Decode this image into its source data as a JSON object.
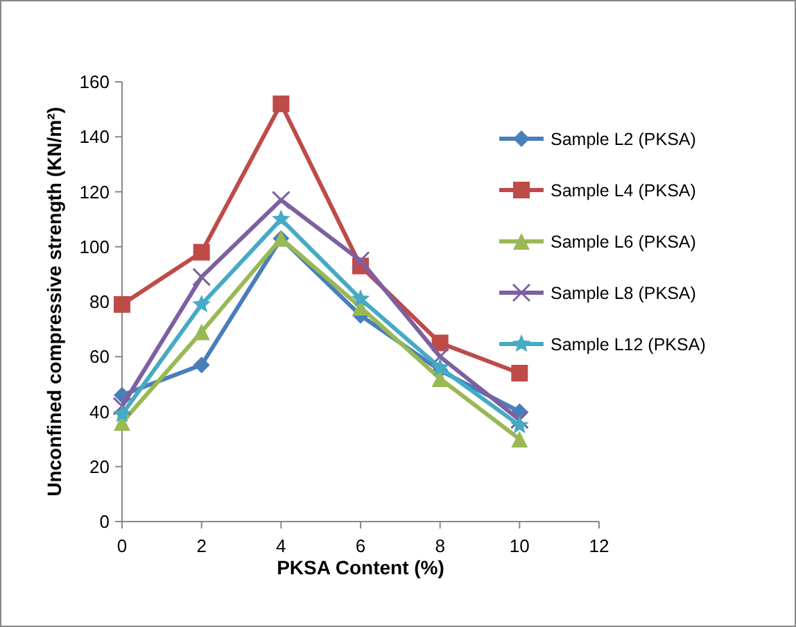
{
  "chart_data": {
    "type": "line",
    "xlabel": "PKSA Content (%)",
    "ylabel": "Unconfined compressive strength (KN/m²)",
    "x": [
      0,
      2,
      4,
      6,
      8,
      10
    ],
    "xlim": [
      0,
      12
    ],
    "xticks": [
      0,
      2,
      4,
      6,
      8,
      10,
      12
    ],
    "ylim": [
      0,
      160
    ],
    "yticks": [
      0,
      20,
      40,
      60,
      80,
      100,
      120,
      140,
      160
    ],
    "legend": "right",
    "series": [
      {
        "name": "Sample L2 (PKSA)",
        "color": "#4a7ebb",
        "marker": "diamond",
        "values": [
          46,
          57,
          103,
          75,
          55,
          40
        ]
      },
      {
        "name": "Sample L4 (PKSA)",
        "color": "#be4b48",
        "marker": "square",
        "values": [
          79,
          98,
          152,
          93,
          65,
          54
        ]
      },
      {
        "name": "Sample L6 (PKSA)",
        "color": "#98b954",
        "marker": "triangle",
        "values": [
          36,
          69,
          103,
          78,
          52,
          30
        ]
      },
      {
        "name": "Sample L8 (PKSA)",
        "color": "#7d60a0",
        "marker": "cross",
        "values": [
          42,
          89,
          117,
          95,
          60,
          37
        ]
      },
      {
        "name": "Sample L12 (PKSA)",
        "color": "#46aac5",
        "marker": "star",
        "values": [
          39,
          79,
          110,
          81,
          56,
          35
        ]
      }
    ]
  }
}
